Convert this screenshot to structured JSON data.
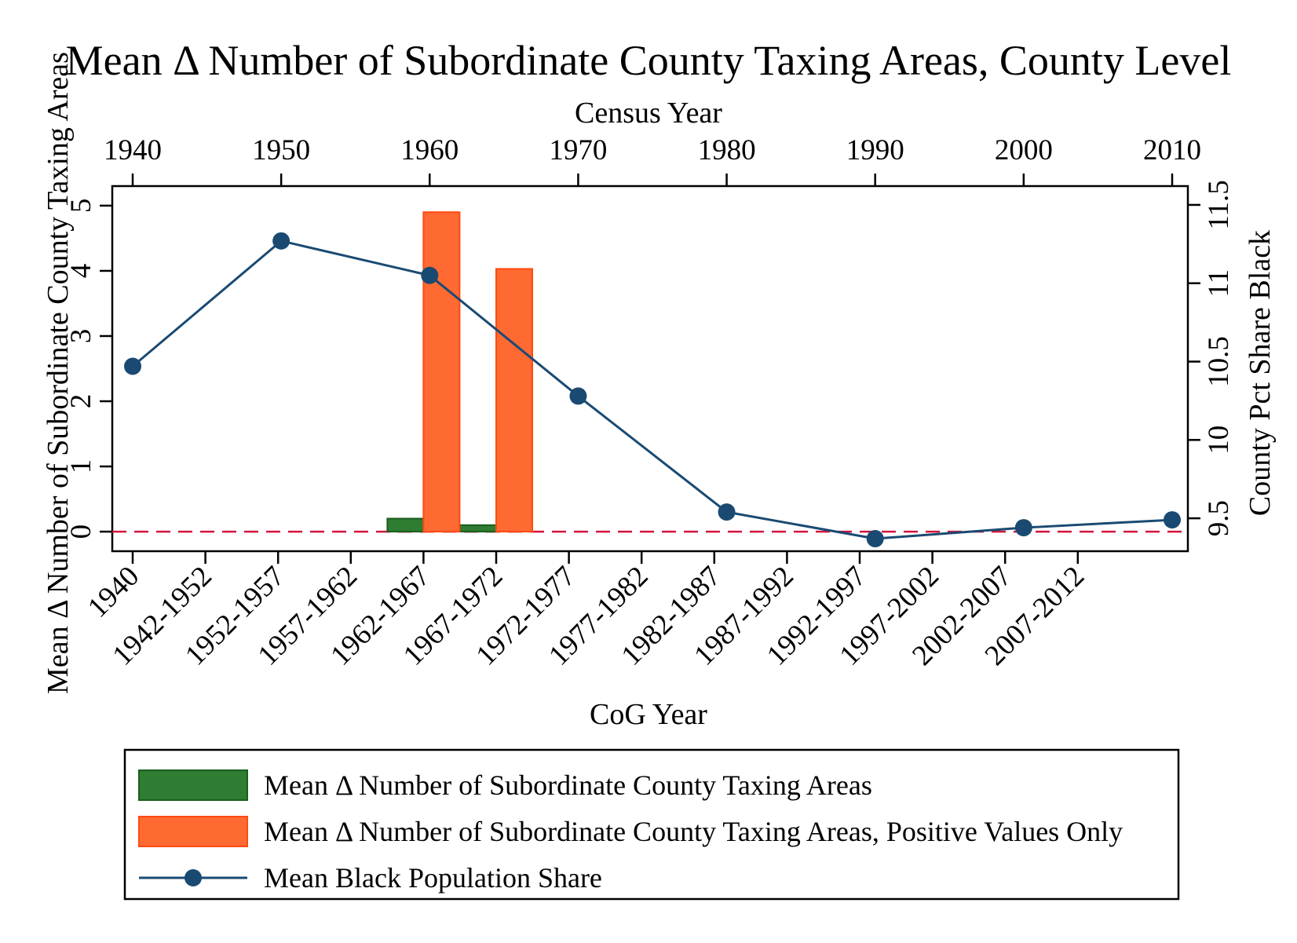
{
  "chart_data": {
    "type": "bar",
    "title": "Mean Δ Number of Subordinate County Taxing Areas, County Level",
    "top_axis": {
      "label": "Census Year",
      "ticks": [
        "1940",
        "1950",
        "1960",
        "1970",
        "1980",
        "1990",
        "2000",
        "2010"
      ],
      "range": [
        1940,
        2010
      ]
    },
    "bottom_axis": {
      "label": "CoG Year",
      "categories": [
        "1940",
        "1942-1952",
        "1952-1957",
        "1957-1962",
        "1962-1967",
        "1967-1972",
        "1972-1977",
        "1977-1982",
        "1982-1987",
        "1987-1992",
        "1992-1997",
        "1997-2002",
        "2002-2007",
        "2007-2012"
      ]
    },
    "left_axis": {
      "label": "Mean Δ Number of Subordinate County Taxing Areas",
      "ticks": [
        "0",
        "1",
        "2",
        "3",
        "4",
        "5"
      ],
      "range": [
        -0.3,
        5.3
      ]
    },
    "right_axis": {
      "label": "County Pct Share Black",
      "ticks": [
        "9.5",
        "10",
        "10.5",
        "11",
        "11.5"
      ],
      "range": [
        9.29,
        11.62
      ]
    },
    "series": [
      {
        "name": "Mean Δ Number of Subordinate County Taxing Areas",
        "type": "bar",
        "axis": "left",
        "color": "#2e7d32",
        "points": [
          {
            "category": "1962-1967",
            "value": 0.2
          },
          {
            "category": "1967-1972",
            "value": 0.1
          }
        ]
      },
      {
        "name": "Mean Δ Number of Subordinate County Taxing Areas, Positive Values Only",
        "type": "bar",
        "axis": "left",
        "color": "#ff6a33",
        "points": [
          {
            "category": "1962-1967",
            "value": 4.9
          },
          {
            "category": "1967-1972",
            "value": 4.03
          }
        ]
      },
      {
        "name": "Mean Black Population Share",
        "type": "line",
        "axis": "right",
        "color": "#1a4a72",
        "x_top": [
          1940,
          1950,
          1960,
          1970,
          1980,
          1990,
          2000,
          2010
        ],
        "values": [
          10.47,
          11.27,
          11.05,
          10.28,
          9.54,
          9.37,
          9.44,
          9.49
        ]
      }
    ],
    "reference_line": {
      "axis": "left",
      "value": 0,
      "color": "#d4143c",
      "style": "dashed"
    },
    "legend": {
      "placement": "bottom",
      "entries": [
        "Mean Δ Number of Subordinate County Taxing Areas",
        "Mean Δ Number of Subordinate County Taxing Areas, Positive Values Only",
        "Mean Black Population Share"
      ]
    },
    "grid": false
  }
}
